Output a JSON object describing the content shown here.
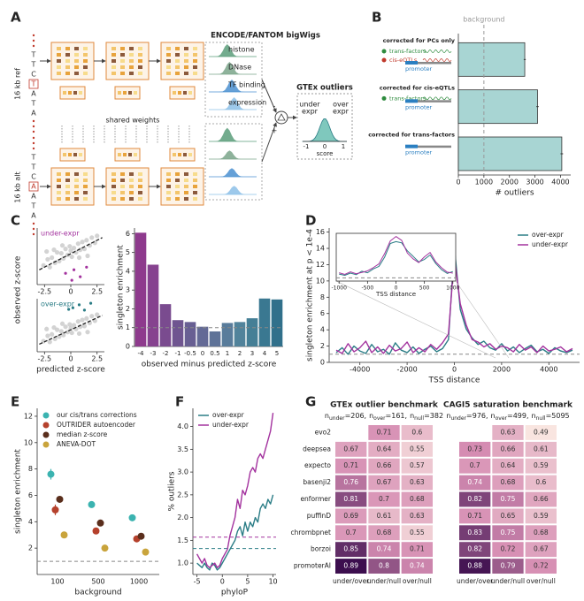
{
  "figure": {
    "panel_labels": [
      "A",
      "B",
      "C",
      "D",
      "E",
      "F",
      "G"
    ]
  },
  "diagram": {
    "ref_label": "16 kb ref",
    "alt_label": "16 kb alt",
    "ref_sequence": [
      "T",
      "T",
      "C",
      "T",
      "A",
      "T",
      "A"
    ],
    "alt_sequence": [
      "T",
      "T",
      "C",
      "A",
      "A",
      "T",
      "A"
    ],
    "shared_weights": "shared weights",
    "tracks_title": "ENCODE/FANTOM bigWigs",
    "tracks": [
      "histone",
      "DNase",
      "TF binding",
      "expression"
    ],
    "signs": [
      "-",
      "+"
    ],
    "outliers": {
      "title": "GTEx outliers",
      "left": [
        "under",
        "expr"
      ],
      "right": [
        "over",
        "expr"
      ],
      "ticks": [
        "-1",
        "0",
        "1"
      ],
      "xlabel": "score"
    }
  },
  "chart_data": [
    {
      "type": "bar",
      "orientation": "horizontal",
      "categories": [
        "corrected for PCs only",
        "corrected for cis-eQTLs",
        "corrected for trans-factors"
      ],
      "category_notes": [
        [
          "trans-factors",
          "cis-eQTLs",
          "promoter"
        ],
        [
          "trans-factors",
          "promoter"
        ],
        [
          "promoter"
        ]
      ],
      "category_note_colors": [
        [
          "#2e8b3e",
          "#c0392b",
          "#2a7fc1"
        ],
        [
          "#2e8b3e",
          "#2a7fc1"
        ],
        [
          "#2a7fc1"
        ]
      ],
      "values": [
        2600,
        3100,
        4050
      ],
      "errors": [
        40,
        45,
        50
      ],
      "color": "#a8d5d3",
      "xlim": [
        0,
        4400
      ],
      "xticks": [
        0,
        1000,
        2000,
        3000,
        4000
      ],
      "xlabel": "# outliers",
      "ref_line": {
        "value": 1000,
        "label": "background"
      }
    },
    {
      "type": "scatter",
      "series": [
        {
          "color": "#c8c8c8",
          "x": [
            -2.6,
            -2.2,
            -2.0,
            -1.8,
            -1.5,
            -1.3,
            -1.1,
            -0.9,
            -0.7,
            -0.5,
            -0.3,
            -0.1,
            0.1,
            0.3,
            0.5,
            0.7,
            0.9,
            1.1,
            1.3,
            1.5,
            1.8,
            2.0,
            2.3,
            -1.6,
            -0.8,
            0.0,
            0.8,
            1.6,
            -2.3,
            2.5
          ],
          "y": [
            -1.3,
            -0.6,
            -1.5,
            -0.4,
            -1.0,
            0.2,
            -0.8,
            0.1,
            -0.5,
            0.6,
            -0.1,
            0.9,
            -0.3,
            0.7,
            0.2,
            1.2,
            0.5,
            1.4,
            0.6,
            1.6,
            1.0,
            1.9,
            1.3,
            0.5,
            1.0,
            0.4,
            -0.4,
            -0.2,
            0.3,
            2.1
          ]
        },
        {
          "name": "under-expr",
          "color": "#a3329e",
          "x": [
            -0.5,
            0.3,
            0.9,
            1.5,
            0.1
          ],
          "y": [
            -2.2,
            -1.8,
            -2.6,
            -1.5,
            -3.0
          ]
        }
      ],
      "trend": {
        "x": [
          -3,
          3
        ],
        "y": [
          -1.8,
          1.9
        ]
      },
      "xlim": [
        -3.2,
        3.2
      ],
      "ylim": [
        -3.5,
        3.0
      ],
      "xticks": [
        -2.5,
        0,
        2.5
      ],
      "ylabel": "observed z-score"
    },
    {
      "type": "scatter",
      "series": [
        {
          "color": "#c8c8c8",
          "x": [
            -2.6,
            -2.2,
            -2.0,
            -1.8,
            -1.5,
            -1.3,
            -1.1,
            -0.9,
            -0.7,
            -0.5,
            -0.3,
            -0.1,
            0.1,
            0.3,
            0.5,
            0.7,
            0.9,
            1.1,
            1.3,
            1.5,
            1.8,
            2.0,
            2.3,
            -1.6,
            -0.8,
            0.0,
            0.8,
            1.6,
            -2.3,
            2.5
          ],
          "y": [
            -1.6,
            -0.9,
            -1.7,
            -0.7,
            -1.3,
            -0.1,
            -1.0,
            -0.3,
            -0.8,
            0.3,
            -0.4,
            0.6,
            -0.5,
            0.5,
            0.0,
            1.0,
            0.3,
            1.2,
            0.4,
            1.4,
            0.8,
            1.7,
            1.1,
            0.2,
            0.7,
            0.1,
            -0.6,
            -0.4,
            0.0,
            1.9
          ]
        },
        {
          "name": "over-expr",
          "color": "#2b7d86",
          "x": [
            0.2,
            0.8,
            1.3,
            1.9,
            -0.2
          ],
          "y": [
            2.8,
            3.2,
            2.5,
            3.4,
            2.6
          ]
        }
      ],
      "trend": {
        "x": [
          -3,
          3
        ],
        "y": [
          -2.0,
          1.8
        ]
      },
      "xlim": [
        -3.2,
        3.2
      ],
      "ylim": [
        -3.0,
        4.0
      ],
      "xticks": [
        -2.5,
        0,
        2.5
      ],
      "xlabel": "predicted z-score"
    },
    {
      "type": "bar",
      "categories": [
        "-4",
        "-3",
        "-2",
        "-1",
        "-0.5",
        "0",
        "0.5",
        "1",
        "2",
        "3",
        "4",
        "5"
      ],
      "values": [
        6.05,
        4.35,
        2.25,
        1.4,
        1.3,
        1.05,
        0.8,
        1.25,
        1.3,
        1.5,
        2.55,
        2.5
      ],
      "colors": [
        "#8e3a8d",
        "#86428f",
        "#7a4b8f",
        "#6f5590",
        "#685f93",
        "#646a96",
        "#5f7398",
        "#597c9b",
        "#51839b",
        "#457f96",
        "#3a7891",
        "#31708b"
      ],
      "ylim": [
        0,
        6.3
      ],
      "yticks": [
        0,
        1,
        2,
        3,
        4,
        5,
        6
      ],
      "ref_line": 1,
      "ylabel": "singleton enrichment",
      "xlabel": "observed minus predicted z-score"
    },
    {
      "type": "line",
      "x": [
        -5000,
        -4750,
        -4500,
        -4250,
        -4000,
        -3750,
        -3500,
        -3250,
        -3000,
        -2750,
        -2500,
        -2250,
        -2000,
        -1750,
        -1500,
        -1250,
        -1000,
        -750,
        -500,
        -250,
        0,
        250,
        500,
        750,
        1000,
        1250,
        1500,
        1750,
        2000,
        2250,
        2500,
        2750,
        3000,
        3250,
        3500,
        3750,
        4000,
        4250,
        4500,
        4750,
        5000
      ],
      "series": [
        {
          "name": "over-expr",
          "color": "#2b7d86",
          "values": [
            1.2,
            1.8,
            1.0,
            2.0,
            1.4,
            1.1,
            2.2,
            1.3,
            1.6,
            1.0,
            2.4,
            1.5,
            1.2,
            1.9,
            1.1,
            1.6,
            2.0,
            1.3,
            1.7,
            2.8,
            14.2,
            6.5,
            4.1,
            3.0,
            2.2,
            2.6,
            1.8,
            1.5,
            2.3,
            1.4,
            1.9,
            1.2,
            1.7,
            2.1,
            1.3,
            1.6,
            1.1,
            1.8,
            1.4,
            1.2,
            1.5
          ]
        },
        {
          "name": "under-expr",
          "color": "#a3329e",
          "values": [
            1.5,
            1.1,
            2.3,
            1.3,
            1.8,
            2.6,
            1.2,
            1.9,
            1.1,
            2.1,
            1.4,
            1.7,
            2.5,
            1.2,
            1.8,
            1.3,
            2.2,
            1.6,
            2.4,
            3.5,
            13.0,
            7.2,
            4.6,
            2.8,
            2.5,
            1.9,
            2.3,
            1.6,
            2.0,
            1.8,
            1.3,
            2.2,
            1.5,
            1.9,
            1.2,
            2.0,
            1.4,
            1.6,
            1.9,
            1.3,
            1.7
          ]
        }
      ],
      "xlim": [
        -5300,
        5300
      ],
      "ylim": [
        0,
        16.5
      ],
      "xticks": [
        -4000,
        -2000,
        0,
        2000,
        4000
      ],
      "yticks": [
        0,
        2,
        4,
        6,
        8,
        10,
        12,
        14,
        16
      ],
      "ref_line": 1,
      "legend": "upper right",
      "ylabel": "singleton enrichment at p < 1e-4",
      "xlabel": "TSS distance"
    },
    {
      "type": "line",
      "inset": true,
      "x": [
        -1000,
        -900,
        -800,
        -700,
        -600,
        -500,
        -400,
        -300,
        -200,
        -100,
        0,
        100,
        200,
        300,
        400,
        500,
        600,
        700,
        800,
        900,
        1000
      ],
      "series": [
        {
          "color": "#2b7d86",
          "values": [
            2.2,
            1.8,
            2.5,
            2.0,
            3.1,
            2.6,
            3.8,
            4.6,
            7.5,
            11.8,
            12.4,
            12.0,
            9.5,
            7.8,
            6.0,
            6.8,
            8.2,
            5.5,
            3.6,
            2.4,
            3.0
          ]
        },
        {
          "color": "#a3329e",
          "values": [
            2.6,
            2.1,
            2.9,
            2.3,
            2.7,
            3.2,
            4.2,
            5.4,
            8.6,
            12.6,
            14.0,
            12.8,
            8.8,
            7.0,
            5.8,
            7.6,
            9.0,
            6.0,
            4.2,
            2.8,
            2.5
          ]
        }
      ],
      "xlim": [
        -1050,
        1050
      ],
      "ylim": [
        0,
        15
      ],
      "xticks": [
        -1000,
        -500,
        0,
        500,
        1000
      ],
      "ref_line": 1,
      "xlabel": "TSS distance"
    },
    {
      "type": "scatter",
      "categories": [
        "100",
        "500",
        "1000"
      ],
      "series": [
        {
          "name": "our cis/trans corrections",
          "color": "#3bb3b0",
          "values": [
            7.6,
            5.3,
            4.3
          ],
          "errors": [
            0.4,
            0.2,
            0.2
          ]
        },
        {
          "name": "OUTRIDER autoencoder",
          "color": "#b5412c",
          "values": [
            4.9,
            3.3,
            2.7
          ],
          "errors": [
            0.4,
            0.2,
            0.15
          ]
        },
        {
          "name": "median z-score",
          "color": "#5a2e1c",
          "values": [
            5.7,
            3.9,
            2.9
          ],
          "errors": [
            0.2,
            0.15,
            0.15
          ]
        },
        {
          "name": "ANEVA-DOT",
          "color": "#c9a43c",
          "values": [
            3.0,
            2.0,
            1.7
          ],
          "errors": [
            0.15,
            0.1,
            0.1
          ]
        }
      ],
      "ylim": [
        0,
        12.6
      ],
      "yticks": [
        2,
        4,
        6,
        8,
        10,
        12
      ],
      "ref_line": 1,
      "legend": "upper left",
      "ylabel": "singleton enrichment",
      "xlabel": "background"
    },
    {
      "type": "line",
      "x": [
        -5,
        -4.5,
        -4,
        -3.5,
        -3,
        -2.5,
        -2,
        -1.5,
        -1,
        -0.5,
        0,
        0.5,
        1,
        1.5,
        2,
        2.5,
        3,
        3.5,
        4,
        4.5,
        5,
        5.5,
        6,
        6.5,
        7,
        7.5,
        8,
        8.5,
        9,
        9.5,
        10
      ],
      "series": [
        {
          "name": "over-expr",
          "color": "#2b7d86",
          "baseline": 1.32,
          "values": [
            1.0,
            0.95,
            0.9,
            1.0,
            0.9,
            0.85,
            1.0,
            0.95,
            0.85,
            0.9,
            1.0,
            1.1,
            1.2,
            1.3,
            1.4,
            1.5,
            1.7,
            1.8,
            1.6,
            1.9,
            1.7,
            1.9,
            1.8,
            2.0,
            1.9,
            2.2,
            2.3,
            2.2,
            2.4,
            2.3,
            2.5
          ]
        },
        {
          "name": "under-expr",
          "color": "#a3329e",
          "baseline": 1.57,
          "values": [
            1.2,
            1.1,
            1.0,
            1.1,
            0.95,
            0.9,
            0.95,
            1.0,
            0.9,
            0.95,
            1.1,
            1.2,
            1.3,
            1.6,
            1.8,
            2.0,
            2.4,
            2.2,
            2.6,
            2.5,
            2.7,
            3.0,
            3.1,
            3.0,
            3.3,
            3.4,
            3.3,
            3.5,
            3.7,
            3.9,
            4.3
          ]
        }
      ],
      "xlim": [
        -5.8,
        10.6
      ],
      "ylim": [
        0.75,
        4.4
      ],
      "xticks": [
        -5,
        0,
        5,
        10
      ],
      "yticks": [
        {
          "value": 1.0,
          "label": "1.0"
        },
        1.5,
        {
          "value": 2.0,
          "label": "2.0"
        },
        2.5,
        {
          "value": 3.0,
          "label": "3.0"
        },
        3.5,
        {
          "value": 4.0,
          "label": "4.0"
        }
      ],
      "legend": "upper left",
      "ylabel": "% outliers",
      "xlabel": "phyloP"
    },
    {
      "type": "heatmap",
      "title": "GTEx outlier benchmark",
      "subtitle": [
        [
          "n",
          "under",
          "=206,"
        ],
        [
          "n",
          "over",
          "=161,"
        ],
        [
          "n",
          "null",
          "=382"
        ]
      ],
      "rows": [
        "evo2",
        "deepsea",
        "expecto",
        "basenji2",
        "enformer",
        "puffinD",
        "chrombpnet",
        "borzoi",
        "promoterAI"
      ],
      "columns": [
        "under/over",
        "under/null",
        "over/null"
      ],
      "values": [
        [
          null,
          0.71,
          0.6
        ],
        [
          0.67,
          0.64,
          0.55
        ],
        [
          0.71,
          0.66,
          0.57
        ],
        [
          0.76,
          0.67,
          0.63
        ],
        [
          0.81,
          0.7,
          0.68
        ],
        [
          0.69,
          0.61,
          0.63
        ],
        [
          0.7,
          0.68,
          0.55
        ],
        [
          0.85,
          0.74,
          0.71
        ],
        [
          0.89,
          0.8,
          0.74
        ]
      ]
    },
    {
      "type": "heatmap",
      "title": "CAGI5 saturation benchmark",
      "subtitle": [
        [
          "n",
          "under",
          "=976,"
        ],
        [
          "n",
          "over",
          "=499,"
        ],
        [
          "n",
          "null",
          "=5095"
        ]
      ],
      "columns": [
        "under/over",
        "under/null",
        "over/null"
      ],
      "values": [
        [
          null,
          0.63,
          0.49
        ],
        [
          0.73,
          0.66,
          0.61
        ],
        [
          0.7,
          0.64,
          0.59
        ],
        [
          0.74,
          0.68,
          0.6
        ],
        [
          0.82,
          0.75,
          0.66
        ],
        [
          0.71,
          0.65,
          0.59
        ],
        [
          0.83,
          0.75,
          0.68
        ],
        [
          0.82,
          0.72,
          0.67
        ],
        [
          0.88,
          0.79,
          0.72
        ]
      ]
    }
  ]
}
